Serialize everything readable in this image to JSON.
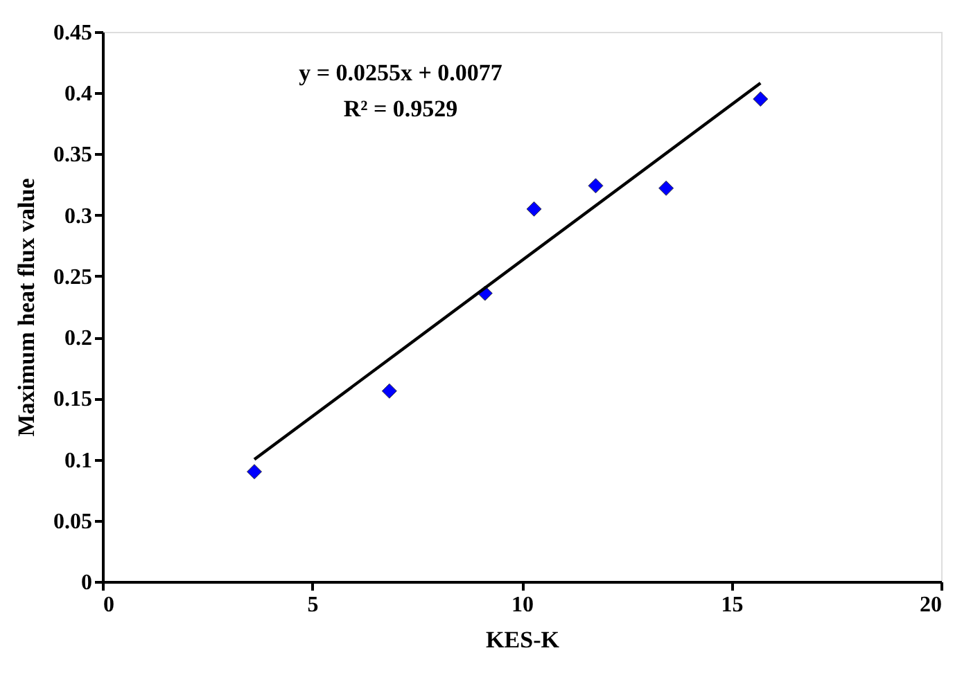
{
  "chart_data": {
    "type": "scatter",
    "xlabel": "KES-K",
    "ylabel": "Maximum heat flux value",
    "xlim": [
      0,
      20
    ],
    "xticks": [
      0,
      5,
      10,
      15,
      20
    ],
    "ylim": [
      0,
      0.45
    ],
    "yticks": [
      0,
      0.05,
      0.1,
      0.15,
      0.2,
      0.25,
      0.3,
      0.35,
      0.4,
      0.45
    ],
    "grid": false,
    "series": [
      {
        "marker": "diamond",
        "color": "#0000ff",
        "x": [
          3.62,
          6.84,
          9.12,
          10.29,
          11.76,
          13.44,
          15.69
        ],
        "values": [
          0.09,
          0.156,
          0.236,
          0.305,
          0.324,
          0.322,
          0.395
        ]
      },
      {
        "type": "line",
        "marker": "none",
        "color": "#000000",
        "line_style": "solid",
        "x": [
          3.62,
          15.69
        ],
        "values": [
          0.1,
          0.408
        ]
      }
    ],
    "annotations": [
      "y = 0.0255x + 0.0077",
      "R² = 0.9529"
    ]
  }
}
